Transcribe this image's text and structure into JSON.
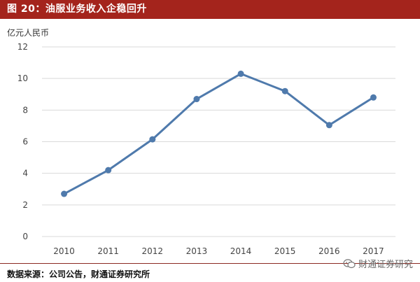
{
  "figure": {
    "title": "图 20：油服业务收入企稳回升",
    "source": "数据来源：公司公告，财通证券研究所",
    "watermark": "财通证券研究"
  },
  "colors": {
    "title_bar": "#a4241c",
    "series": "#4f7aac",
    "grid": "#d9d9d9"
  },
  "icons": {
    "watermark": "wechat-icon"
  },
  "chart_data": {
    "type": "line",
    "title": "",
    "xlabel": "",
    "ylabel": "亿元人民币",
    "ylim": [
      0,
      12
    ],
    "yticks": [
      0,
      2,
      4,
      6,
      8,
      10,
      12
    ],
    "grid": true,
    "legend": "none",
    "categories": [
      "2010",
      "2011",
      "2012",
      "2013",
      "2014",
      "2015",
      "2016",
      "2017"
    ],
    "series": [
      {
        "values": [
          2.7,
          4.2,
          6.15,
          8.7,
          10.3,
          9.2,
          7.05,
          8.8
        ]
      }
    ]
  }
}
